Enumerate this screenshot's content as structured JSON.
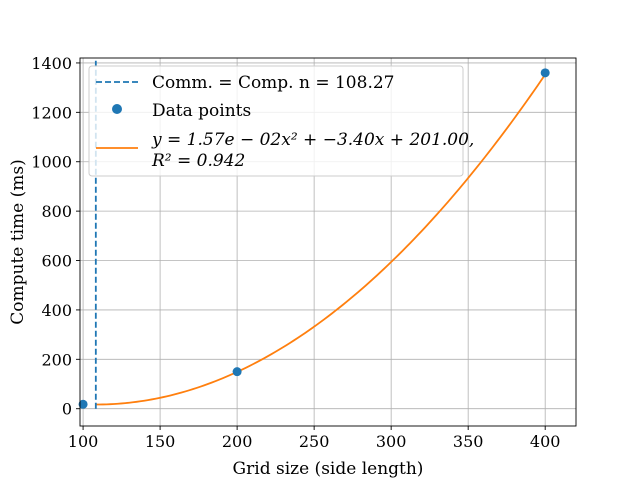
{
  "chart_data": {
    "type": "line",
    "xlabel": "Grid size (side length)",
    "ylabel": "Compute time (ms)",
    "xlim": [
      98,
      420
    ],
    "ylim": [
      -70,
      1420
    ],
    "xticks": [
      100,
      150,
      200,
      250,
      300,
      350,
      400
    ],
    "yticks": [
      0,
      200,
      400,
      600,
      800,
      1000,
      1200,
      1400
    ],
    "grid": true,
    "legend_position": "top-left",
    "colors": {
      "threshold": "#1f77b4",
      "points": "#1f77b4",
      "fit": "#ff7f0e"
    },
    "series": [
      {
        "name": "Comm. = Comp. n = 108.27",
        "kind": "vertical-dashed",
        "x": [
          108.27,
          108.27
        ],
        "y": [
          0,
          1420
        ]
      },
      {
        "name": "Data points",
        "kind": "scatter",
        "x": [
          100,
          200,
          400
        ],
        "y": [
          18,
          150,
          1360
        ]
      },
      {
        "name": "y = 1.57e − 02x² + −3.40x + 201.00,",
        "name_line2": "R² = 0.942",
        "kind": "fit-curve",
        "coefficients": {
          "a": 0.0157,
          "b": -3.4,
          "c": 201.0
        },
        "x_range": [
          108,
          400
        ]
      }
    ]
  }
}
